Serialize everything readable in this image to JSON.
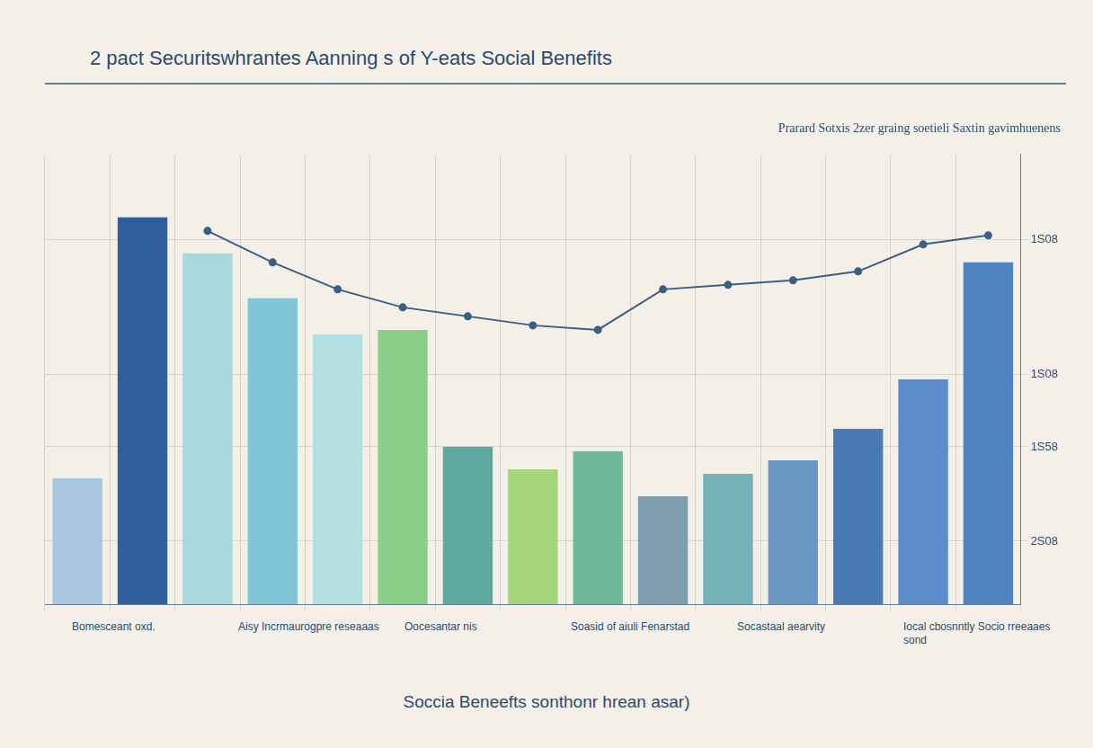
{
  "chart_data": {
    "type": "bar",
    "title": "2 pact Securitswhrantes Aanning s of Y-eats Social Benefits",
    "subtitle": "Prarard Sotxis 2zer graing soetieli Saxtin gavimhuenens",
    "x_label": "Soccia Beneefts sonthonr hrean asar)",
    "notes": [
      "Bomesceant oxd.",
      "Aisy Incrmaurogpre reseaaas",
      "Oocesantar nis",
      "Soasid of aiuli Fenarstad",
      "Socastaal aearvity",
      "Iocal cbosnntly Socio rreeaaes sond"
    ],
    "categories": [
      null,
      null,
      null,
      null,
      null,
      null,
      null,
      null,
      null,
      null,
      null,
      null,
      null,
      null,
      null
    ],
    "series": [
      {
        "type": "bar",
        "values": [
          28,
          86,
          78,
          68,
          60,
          61,
          35,
          30,
          34,
          24,
          29,
          32,
          39,
          50,
          76
        ],
        "colors": [
          "#a9c6e0",
          "#2f5f9e",
          "#a8d8dc",
          "#7fc6d6",
          "#b5e0e3",
          "#8ccf8a",
          "#5fa8a0",
          "#a6d67c",
          "#6fb89a",
          "#7f9fb0",
          "#72b2b8",
          "#6a97c4",
          "#4a7ab5",
          "#5b8ccc",
          "#4f84c0"
        ]
      },
      {
        "type": "line",
        "color": "#3a5f85",
        "marker": "circle",
        "values": [
          null,
          null,
          83,
          76,
          70,
          66,
          64,
          62,
          61,
          70,
          71,
          72,
          74,
          80,
          82
        ]
      }
    ],
    "ylim": [
      0,
      100
    ],
    "yticks": [
      {
        "value": 14,
        "label": "2S08"
      },
      {
        "value": 35,
        "label": "1S58"
      },
      {
        "value": 51,
        "label": "1S08"
      },
      {
        "value": 81,
        "label": "1S08"
      }
    ],
    "grid": true,
    "tick_labels": "y"
  }
}
